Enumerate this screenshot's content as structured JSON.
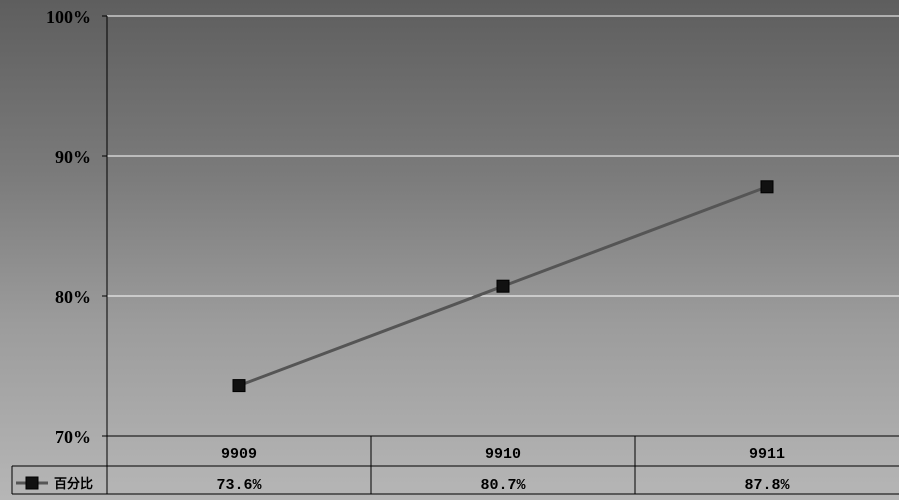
{
  "chart_data": {
    "type": "line",
    "categories": [
      "9909",
      "9910",
      "9911"
    ],
    "series": [
      {
        "name": "百分比",
        "values": [
          73.6,
          80.7,
          87.8
        ],
        "labels": [
          "73.6%",
          "80.7%",
          "87.8%"
        ],
        "color": "#555555",
        "marker": "square"
      }
    ],
    "ylim": [
      70,
      100
    ],
    "yticks": [
      70,
      80,
      90,
      100
    ],
    "ytick_labels": [
      "70%",
      "80%",
      "90%",
      "100%"
    ],
    "grid": true,
    "data_table": true,
    "title": "",
    "xlabel": "",
    "ylabel": ""
  }
}
